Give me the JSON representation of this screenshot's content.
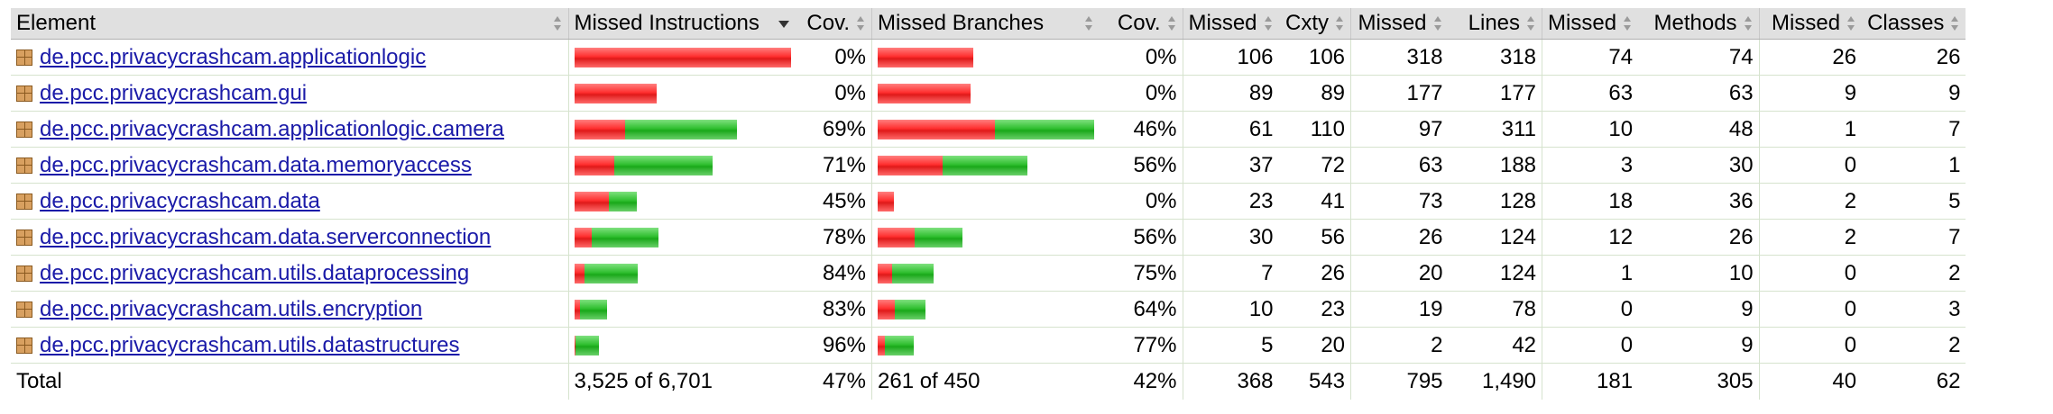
{
  "headers": {
    "element": "Element",
    "missed_instructions": "Missed Instructions",
    "cov1": "Cov.",
    "missed_branches": "Missed Branches",
    "cov2": "Cov.",
    "missed_cxty": "Missed",
    "cxty": "Cxty",
    "missed_lines": "Missed",
    "lines": "Lines",
    "missed_methods": "Missed",
    "methods": "Methods",
    "missed_classes": "Missed",
    "classes": "Classes"
  },
  "rows": [
    {
      "name": "de.pcc.privacycrashcam.applicationlogic",
      "instr_missed_frac": 1.0,
      "instr_total_frac": 1.0,
      "instr_cov": "0%",
      "br_missed_frac": 0.44,
      "br_total_frac": 0.44,
      "br_cov": "0%",
      "missed_cxty": "106",
      "cxty": "106",
      "missed_lines": "318",
      "lines": "318",
      "missed_methods": "74",
      "methods": "74",
      "missed_classes": "26",
      "classes": "26"
    },
    {
      "name": "de.pcc.privacycrashcam.gui",
      "instr_missed_frac": 0.38,
      "instr_total_frac": 0.38,
      "instr_cov": "0%",
      "br_missed_frac": 0.43,
      "br_total_frac": 0.43,
      "br_cov": "0%",
      "missed_cxty": "89",
      "cxty": "89",
      "missed_lines": "177",
      "lines": "177",
      "missed_methods": "63",
      "methods": "63",
      "missed_classes": "9",
      "classes": "9"
    },
    {
      "name": "de.pcc.privacycrashcam.applicationlogic.camera",
      "instr_missed_frac": 0.235,
      "instr_total_frac": 0.75,
      "instr_cov": "69%",
      "br_missed_frac": 0.54,
      "br_total_frac": 1.0,
      "br_cov": "46%",
      "missed_cxty": "61",
      "cxty": "110",
      "missed_lines": "97",
      "lines": "311",
      "missed_methods": "10",
      "methods": "48",
      "missed_classes": "1",
      "classes": "7"
    },
    {
      "name": "de.pcc.privacycrashcam.data.memoryaccess",
      "instr_missed_frac": 0.185,
      "instr_total_frac": 0.64,
      "instr_cov": "71%",
      "br_missed_frac": 0.3,
      "br_total_frac": 0.69,
      "br_cov": "56%",
      "missed_cxty": "37",
      "cxty": "72",
      "missed_lines": "63",
      "lines": "188",
      "missed_methods": "3",
      "methods": "30",
      "missed_classes": "0",
      "classes": "1"
    },
    {
      "name": "de.pcc.privacycrashcam.data",
      "instr_missed_frac": 0.16,
      "instr_total_frac": 0.29,
      "instr_cov": "45%",
      "br_missed_frac": 0.075,
      "br_total_frac": 0.075,
      "br_cov": "0%",
      "missed_cxty": "23",
      "cxty": "41",
      "missed_lines": "73",
      "lines": "128",
      "missed_methods": "18",
      "methods": "36",
      "missed_classes": "2",
      "classes": "5"
    },
    {
      "name": "de.pcc.privacycrashcam.data.serverconnection",
      "instr_missed_frac": 0.08,
      "instr_total_frac": 0.39,
      "instr_cov": "78%",
      "br_missed_frac": 0.17,
      "br_total_frac": 0.39,
      "br_cov": "56%",
      "missed_cxty": "30",
      "cxty": "56",
      "missed_lines": "26",
      "lines": "124",
      "missed_methods": "12",
      "methods": "26",
      "missed_classes": "2",
      "classes": "7"
    },
    {
      "name": "de.pcc.privacycrashcam.utils.dataprocessing",
      "instr_missed_frac": 0.045,
      "instr_total_frac": 0.29,
      "instr_cov": "84%",
      "br_missed_frac": 0.065,
      "br_total_frac": 0.255,
      "br_cov": "75%",
      "missed_cxty": "7",
      "cxty": "26",
      "missed_lines": "20",
      "lines": "124",
      "missed_methods": "1",
      "methods": "10",
      "missed_classes": "0",
      "classes": "2"
    },
    {
      "name": "de.pcc.privacycrashcam.utils.encryption",
      "instr_missed_frac": 0.025,
      "instr_total_frac": 0.15,
      "instr_cov": "83%",
      "br_missed_frac": 0.08,
      "br_total_frac": 0.22,
      "br_cov": "64%",
      "missed_cxty": "10",
      "cxty": "23",
      "missed_lines": "19",
      "lines": "78",
      "missed_methods": "0",
      "methods": "9",
      "missed_classes": "0",
      "classes": "3"
    },
    {
      "name": "de.pcc.privacycrashcam.utils.datastructures",
      "instr_missed_frac": 0.005,
      "instr_total_frac": 0.115,
      "instr_cov": "96%",
      "br_missed_frac": 0.035,
      "br_total_frac": 0.17,
      "br_cov": "77%",
      "missed_cxty": "5",
      "cxty": "20",
      "missed_lines": "2",
      "lines": "42",
      "missed_methods": "0",
      "methods": "9",
      "missed_classes": "0",
      "classes": "2"
    }
  ],
  "total": {
    "label": "Total",
    "instr": "3,525 of 6,701",
    "instr_cov": "47%",
    "branches": "261 of 450",
    "br_cov": "42%",
    "missed_cxty": "368",
    "cxty": "543",
    "missed_lines": "795",
    "lines": "1,490",
    "missed_methods": "181",
    "methods": "305",
    "missed_classes": "40",
    "classes": "62"
  },
  "colors": {
    "missed": "#ff2e2e",
    "covered": "#2fbf2f",
    "header_bg": "#e0e0e0",
    "link": "#1a1aa8"
  },
  "icons": {
    "package": "package-icon",
    "sort": "sort-icon",
    "sort_active": "sort-descending-icon"
  }
}
